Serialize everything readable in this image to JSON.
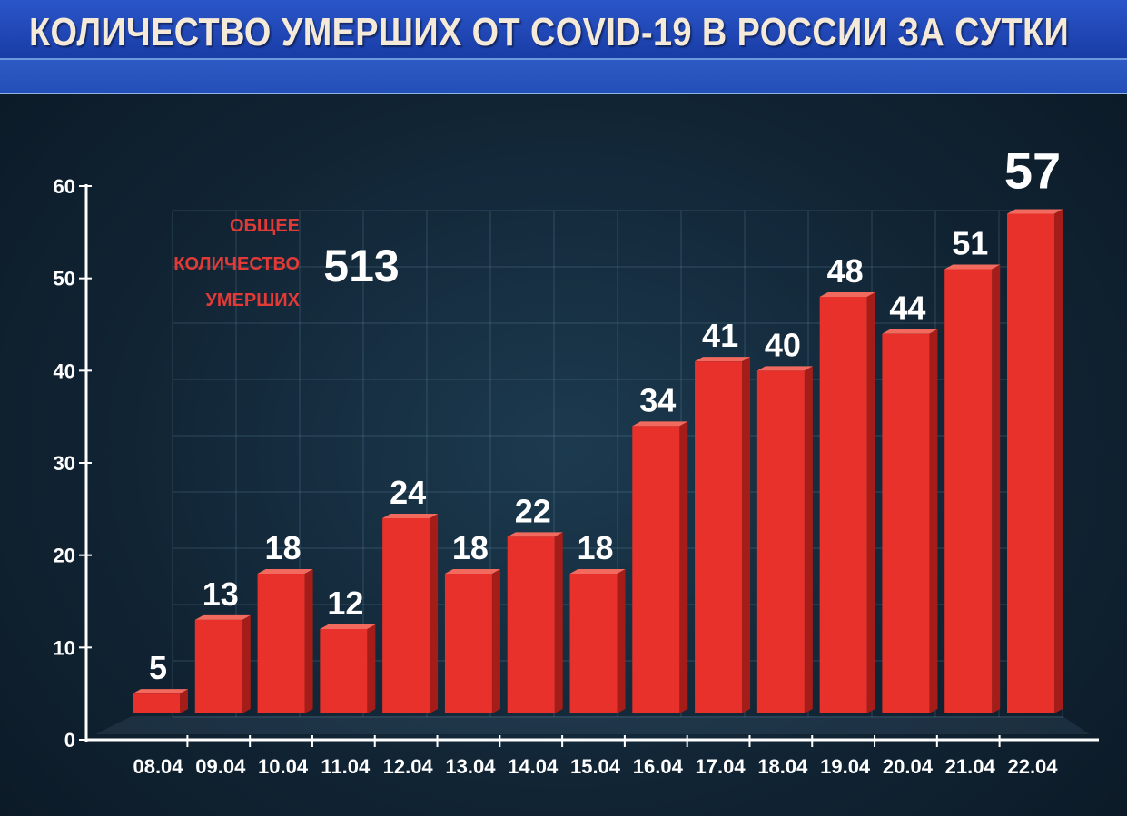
{
  "title": "КОЛИЧЕСТВО УМЕРШИХ ОТ COVID-19 В РОССИИ ЗА СУТКИ",
  "annotation": {
    "label_lines": [
      "ОБЩЕЕ",
      "КОЛИЧЕСТВО",
      "УМЕРШИХ"
    ],
    "total": "513"
  },
  "colors": {
    "bar": "#e8312b",
    "bar_side": "#a51d18",
    "bar_top": "#f26a5e",
    "axis": "#ffffff",
    "annotation": "#e23a36"
  },
  "chart_data": {
    "type": "bar",
    "title": "КОЛИЧЕСТВО УМЕРШИХ ОТ COVID-19 В РОССИИ ЗА СУТКИ",
    "xlabel": "",
    "ylabel": "",
    "ylim": [
      0,
      60
    ],
    "yticks": [
      0,
      10,
      20,
      30,
      40,
      50,
      60
    ],
    "grid": true,
    "categories": [
      "08.04",
      "09.04",
      "10.04",
      "11.04",
      "12.04",
      "13.04",
      "14.04",
      "15.04",
      "16.04",
      "17.04",
      "18.04",
      "19.04",
      "20.04",
      "21.04",
      "22.04"
    ],
    "values": [
      5,
      13,
      18,
      12,
      24,
      18,
      22,
      18,
      34,
      41,
      40,
      48,
      44,
      51,
      57
    ],
    "value_labels": [
      "5",
      "13",
      "18",
      "12",
      "24",
      "18",
      "22",
      "18",
      "34",
      "41",
      "40",
      "48",
      "44",
      "51",
      "57"
    ]
  }
}
